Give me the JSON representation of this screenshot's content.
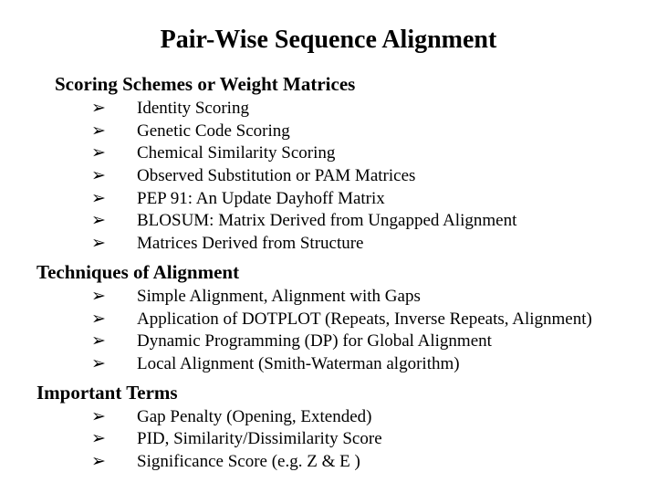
{
  "title": "Pair-Wise Sequence Alignment",
  "bullet_glyph": "➢",
  "sections": [
    {
      "heading": "Scoring Schemes or Weight Matrices",
      "flush": false,
      "items": [
        "Identity Scoring",
        "Genetic Code Scoring",
        "Chemical Similarity Scoring",
        "Observed Substitution or PAM Matrices",
        "PEP 91: An Update Dayhoff Matrix",
        "BLOSUM: Matrix Derived from Ungapped Alignment",
        "Matrices Derived from Structure"
      ]
    },
    {
      "heading": "Techniques of Alignment",
      "flush": true,
      "items": [
        "Simple Alignment, Alignment with Gaps",
        "Application of DOTPLOT (Repeats, Inverse Repeats, Alignment)",
        "Dynamic Programming (DP) for Global Alignment",
        "Local Alignment (Smith-Waterman algorithm)"
      ]
    },
    {
      "heading": "Important Terms",
      "flush": true,
      "items": [
        "Gap Penalty (Opening, Extended)",
        "PID, Similarity/Dissimilarity Score",
        "Significance Score (e.g. Z & E )"
      ]
    }
  ],
  "colors": {
    "background": "#ffffff",
    "text": "#000000"
  },
  "typography": {
    "font_family": "Times New Roman",
    "title_size_pt": 28,
    "heading_size_pt": 21,
    "body_size_pt": 19
  }
}
